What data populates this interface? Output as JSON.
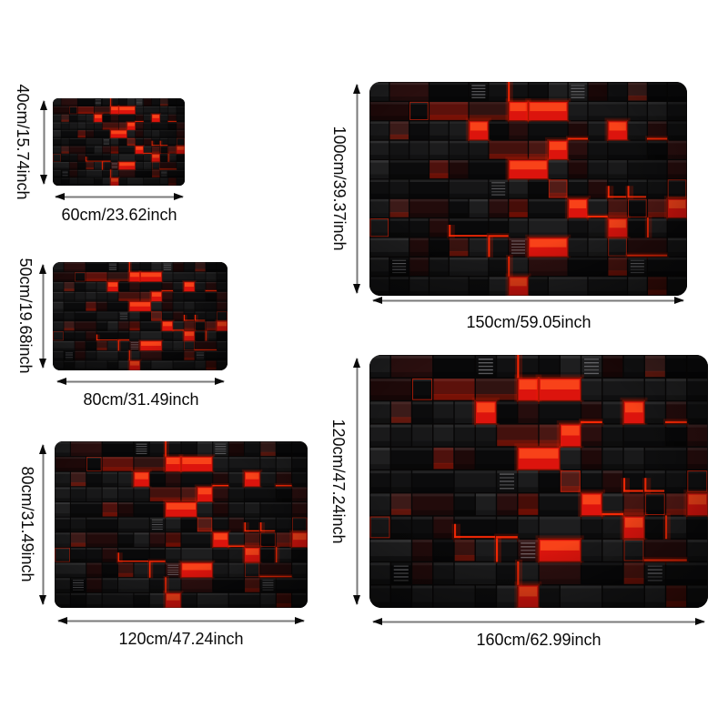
{
  "style": {
    "background": "#ffffff",
    "text_color": "#000000",
    "arrow_line_color": "#7a7a7a",
    "arrow_head_color": "#0a0a0a",
    "mat_base_color": "#0b0a0a",
    "mat_accent_red": "#ff2000"
  },
  "icons": {
    "height_arrow": "double-headed-vertical-arrow",
    "width_arrow": "double-headed-horizontal-arrow"
  },
  "sizes": [
    {
      "height_label": "40cm/15.74inch",
      "width_label": "60cm/23.62inch"
    },
    {
      "height_label": "50cm/19.68inch",
      "width_label": "80cm/31.49inch"
    },
    {
      "height_label": "80cm/31.49inch",
      "width_label": "120cm/47.24inch"
    },
    {
      "height_label": "100cm/39.37inch",
      "width_label": "150cm/59.05inch"
    },
    {
      "height_label": "120cm/47.24inch",
      "width_label": "160cm/62.99inch"
    }
  ]
}
